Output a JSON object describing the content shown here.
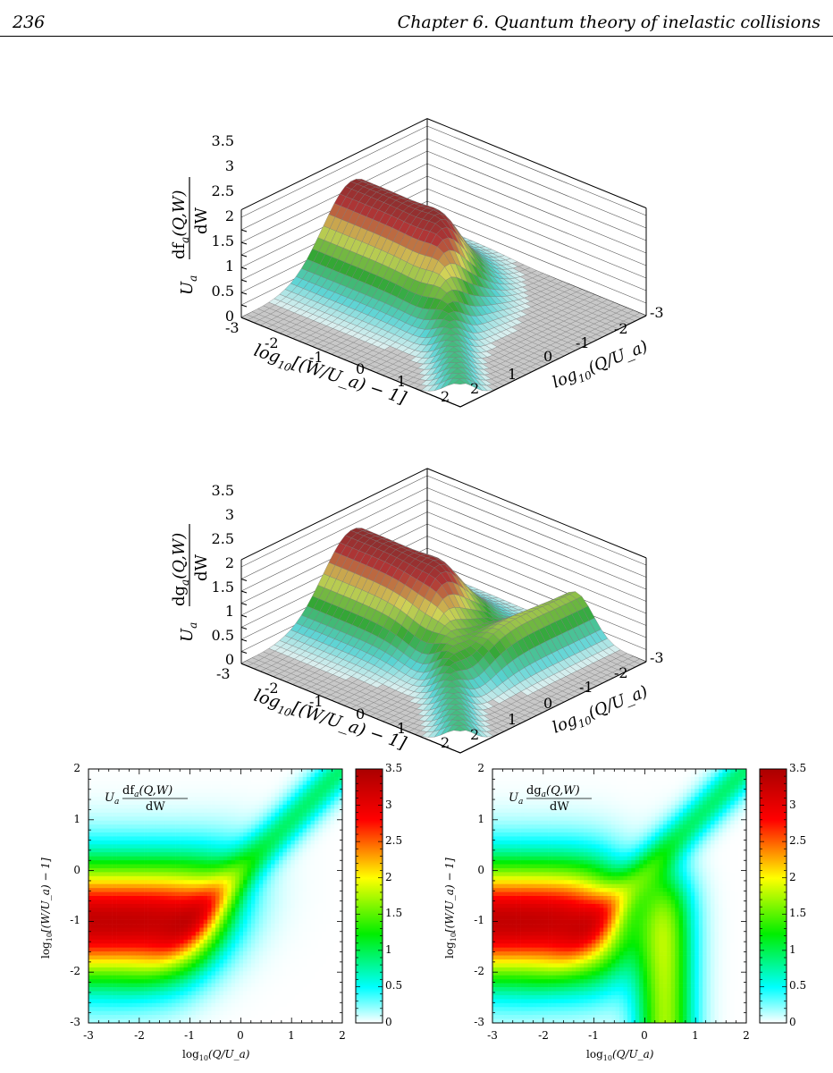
{
  "header": {
    "page_number": "236",
    "running_title": "Chapter 6.  Quantum theory of inelastic collisions"
  },
  "colormap": [
    "#ffffff",
    "#00ffff",
    "#00ee00",
    "#ffff00",
    "#ff0000",
    "#aa0000"
  ],
  "chart_data": [
    {
      "type": "surface3d",
      "z_label": "U_a df_a(Q,W)/dW",
      "z_label_prefix": "U",
      "z_label_sub": "a",
      "z_label_num": "df",
      "z_label_num_sub": "a",
      "z_label_num_tail": "(Q,W)",
      "z_label_den": "dW",
      "x_label": "log10[(W/U_a) − 1]",
      "x_label_prefix": "log",
      "x_label_sub": "10",
      "x_label_tail": "[(W/U_a) − 1]",
      "y_label": "log10(Q/U_a)",
      "y_label_prefix": "log",
      "y_label_sub": "10",
      "y_label_tail": "(Q/U_a)",
      "z_ticks": [
        "0",
        "0.5",
        "1",
        "1.5",
        "2",
        "2.5",
        "3",
        "3.5"
      ],
      "x_ticks": [
        "-3",
        "-2",
        "-1",
        "0",
        "1",
        "2"
      ],
      "y_ticks": [
        "-3",
        "-2",
        "-1",
        "0",
        "1",
        "2"
      ],
      "zlim": [
        0,
        3.5
      ]
    },
    {
      "type": "surface3d",
      "z_label": "U_a dg_a(Q,W)/dW",
      "z_label_prefix": "U",
      "z_label_sub": "a",
      "z_label_num": "dg",
      "z_label_num_sub": "a",
      "z_label_num_tail": "(Q,W)",
      "z_label_den": "dW",
      "x_label": "log10[(W/U_a) − 1]",
      "x_label_prefix": "log",
      "x_label_sub": "10",
      "x_label_tail": "[(W/U_a) − 1]",
      "y_label": "log10(Q/U_a)",
      "y_label_prefix": "log",
      "y_label_sub": "10",
      "y_label_tail": "(Q/U_a)",
      "z_ticks": [
        "0",
        "0.5",
        "1",
        "1.5",
        "2",
        "2.5",
        "3",
        "3.5"
      ],
      "x_ticks": [
        "-3",
        "-2",
        "-1",
        "0",
        "1",
        "2"
      ],
      "y_ticks": [
        "-3",
        "-2",
        "-1",
        "0",
        "1",
        "2"
      ],
      "zlim": [
        0,
        3.5
      ]
    },
    {
      "type": "heatmap",
      "inset_prefix": "U",
      "inset_sub": "a",
      "inset_num": "df",
      "inset_num_sub": "a",
      "inset_num_tail": "(Q,W)",
      "inset_den": "dW",
      "x_label_prefix": "log",
      "x_label_sub": "10",
      "x_label_tail": "(Q/U_a)",
      "y_label_prefix": "log",
      "y_label_sub": "10",
      "y_label_tail": "[(W/U_a) − 1]",
      "x_ticks": [
        "-3",
        "-2",
        "-1",
        "0",
        "1",
        "2"
      ],
      "y_ticks": [
        "-3",
        "-2",
        "-1",
        "0",
        "1",
        "2"
      ],
      "xlim": [
        -3,
        2
      ],
      "ylim": [
        -3,
        2
      ],
      "colorbar_ticks": [
        "0",
        "0.5",
        "1",
        "1.5",
        "2",
        "2.5",
        "3",
        "3.5"
      ],
      "colorbar_range": [
        0,
        3.5
      ]
    },
    {
      "type": "heatmap",
      "inset_prefix": "U",
      "inset_sub": "a",
      "inset_num": "dg",
      "inset_num_sub": "a",
      "inset_num_tail": "(Q,W)",
      "inset_den": "dW",
      "x_label_prefix": "log",
      "x_label_sub": "10",
      "x_label_tail": "(Q/U_a)",
      "y_label_prefix": "log",
      "y_label_sub": "10",
      "y_label_tail": "[(W/U_a) − 1]",
      "x_ticks": [
        "-3",
        "-2",
        "-1",
        "0",
        "1",
        "2"
      ],
      "y_ticks": [
        "-3",
        "-2",
        "-1",
        "0",
        "1",
        "2"
      ],
      "xlim": [
        -3,
        2
      ],
      "ylim": [
        -3,
        2
      ],
      "colorbar_ticks": [
        "0",
        "0.5",
        "1",
        "1.5",
        "2",
        "2.5",
        "3",
        "3.5"
      ],
      "colorbar_range": [
        0,
        3.5
      ]
    }
  ]
}
